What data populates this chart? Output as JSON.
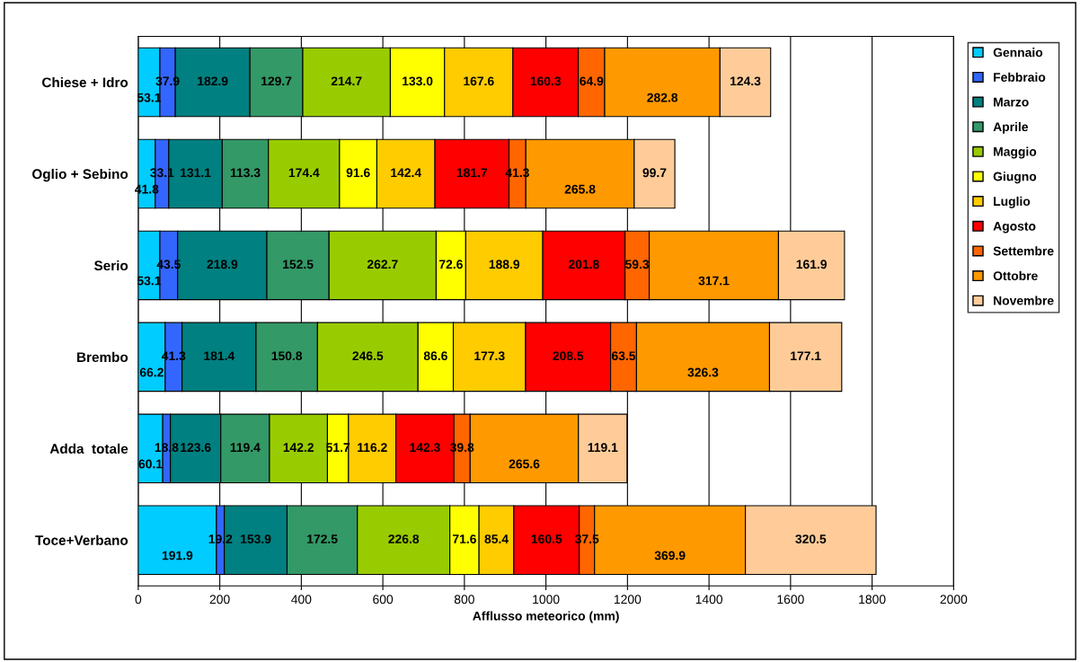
{
  "chart_data": {
    "type": "bar",
    "orientation": "horizontal",
    "stacked": true,
    "xlabel": "Afflusso meteorico (mm)",
    "categories": [
      "Chiese + Idro",
      "Oglio + Sebino",
      "Serio",
      "Brembo",
      "Adda  totale",
      "Toce+Verbano"
    ],
    "xlim": [
      0,
      2000
    ],
    "xticks": [
      0,
      200,
      400,
      600,
      800,
      1000,
      1200,
      1400,
      1600,
      1800,
      2000
    ],
    "grid": "x",
    "legend": "right",
    "series": [
      {
        "name": "Gennaio",
        "color": "#00ccff",
        "values": [
          53.1,
          41.8,
          53.1,
          66.2,
          60.1,
          191.9
        ],
        "value_labels": [
          "53.1",
          "41.8",
          "53.1",
          "66.2",
          "60.1",
          "191.9"
        ]
      },
      {
        "name": "Febbraio",
        "color": "#3366ff",
        "values": [
          37.9,
          33.1,
          43.5,
          41.3,
          18.8,
          19.2
        ],
        "value_labels": [
          "37.9",
          "33.1",
          "43.5",
          "41.3",
          "18.8",
          "19.2"
        ]
      },
      {
        "name": "Marzo",
        "color": "#008080",
        "values": [
          182.9,
          131.1,
          218.9,
          181.4,
          123.6,
          153.9
        ],
        "value_labels": [
          "182.9",
          "131.1",
          "218.9",
          "181.4",
          "123.6",
          "153.9"
        ]
      },
      {
        "name": "Aprile",
        "color": "#339966",
        "values": [
          129.7,
          113.3,
          152.5,
          150.8,
          119.4,
          172.5
        ],
        "value_labels": [
          "129.7",
          "113.3",
          "152.5",
          "150.8",
          "119.4",
          "172.5"
        ]
      },
      {
        "name": "Maggio",
        "color": "#99cc00",
        "values": [
          214.7,
          174.4,
          262.7,
          246.5,
          142.2,
          226.8
        ],
        "value_labels": [
          "214.7",
          "174.4",
          "262.7",
          "246.5",
          "142.2",
          "226.8"
        ]
      },
      {
        "name": "Giugno",
        "color": "#ffff00",
        "values": [
          133.0,
          91.6,
          72.6,
          86.6,
          51.7,
          71.6
        ],
        "value_labels": [
          "133.0",
          "91.6",
          "72.6",
          "86.6",
          "51.7",
          "71.6"
        ]
      },
      {
        "name": "Luglio",
        "color": "#ffcc00",
        "values": [
          167.6,
          142.4,
          188.9,
          177.3,
          116.2,
          85.4
        ],
        "value_labels": [
          "167.6",
          "142.4",
          "188.9",
          "177.3",
          "116.2",
          "85.4"
        ]
      },
      {
        "name": "Agosto",
        "color": "#ff0000",
        "values": [
          160.3,
          181.7,
          201.8,
          208.5,
          142.3,
          160.5
        ],
        "value_labels": [
          "160.3",
          "181.7",
          "201.8",
          "208.5",
          "142.3",
          "160.5"
        ]
      },
      {
        "name": "Settembre",
        "color": "#ff6600",
        "values": [
          64.9,
          41.3,
          59.3,
          63.5,
          39.8,
          37.5
        ],
        "value_labels": [
          "64.9",
          "41.3",
          "59.3",
          "63.5",
          "39.8",
          "37.5"
        ]
      },
      {
        "name": "Ottobre",
        "color": "#ff9900",
        "values": [
          282.8,
          265.8,
          317.1,
          326.3,
          265.6,
          369.9
        ],
        "value_labels": [
          "282.8",
          "265.8",
          "317.1",
          "326.3",
          "265.6",
          "369.9"
        ]
      },
      {
        "name": "Novembre",
        "color": "#ffcc99",
        "values": [
          124.3,
          99.7,
          161.9,
          177.1,
          119.1,
          320.5
        ],
        "value_labels": [
          "124.3",
          "99.7",
          "161.9",
          "177.1",
          "119.1",
          "320.5"
        ]
      }
    ]
  }
}
